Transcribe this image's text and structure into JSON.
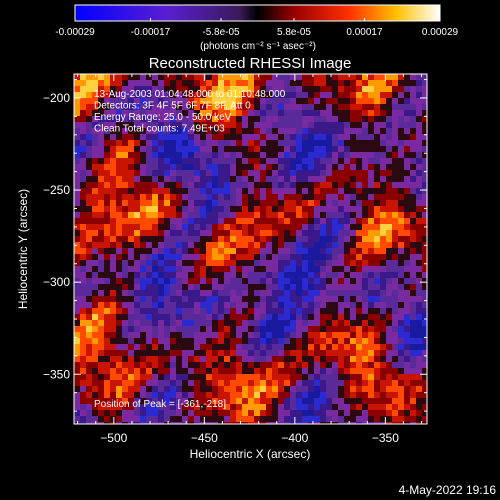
{
  "colorbar": {
    "tick_labels": [
      "-0.00029",
      "-0.00017",
      "-5.8e-05",
      "5.8e-05",
      "0.00017",
      "0.00029"
    ],
    "unit_label": "(photons cm⁻² s⁻¹ asec⁻²)",
    "range": [
      -0.00029,
      0.00029
    ]
  },
  "chart_data": {
    "type": "heatmap",
    "title": "Reconstructed RHESSI Image",
    "xlabel": "Heliocentric X (arcsec)",
    "ylabel": "Heliocentric Y (arcsec)",
    "xlim": [
      -522,
      -327
    ],
    "ylim": [
      -377,
      -187
    ],
    "x_ticks": [
      -500,
      -450,
      -400,
      -350
    ],
    "x_tick_labels": [
      "−500",
      "−450",
      "−400",
      "−350"
    ],
    "y_ticks": [
      -200,
      -250,
      -300,
      -350
    ],
    "y_tick_labels": [
      "−200",
      "−250",
      "−300",
      "−350"
    ],
    "colormap": "blue-purple-red-yellow-white",
    "annotations": [
      "13-Aug-2003 01:04:48.000 to 01:10:48.000",
      "Detectors: 3F 4F 5F 6F 7F 8F, Att 0",
      "Energy Range: 25.0 - 50.0 keV",
      "Clean     Total counts: 7.49E+03"
    ],
    "peak_label": "Position of Peak = [-361,-218]",
    "peak_position": [
      -361,
      -218
    ]
  },
  "footer": {
    "date": "4-May-2022 19:16"
  }
}
